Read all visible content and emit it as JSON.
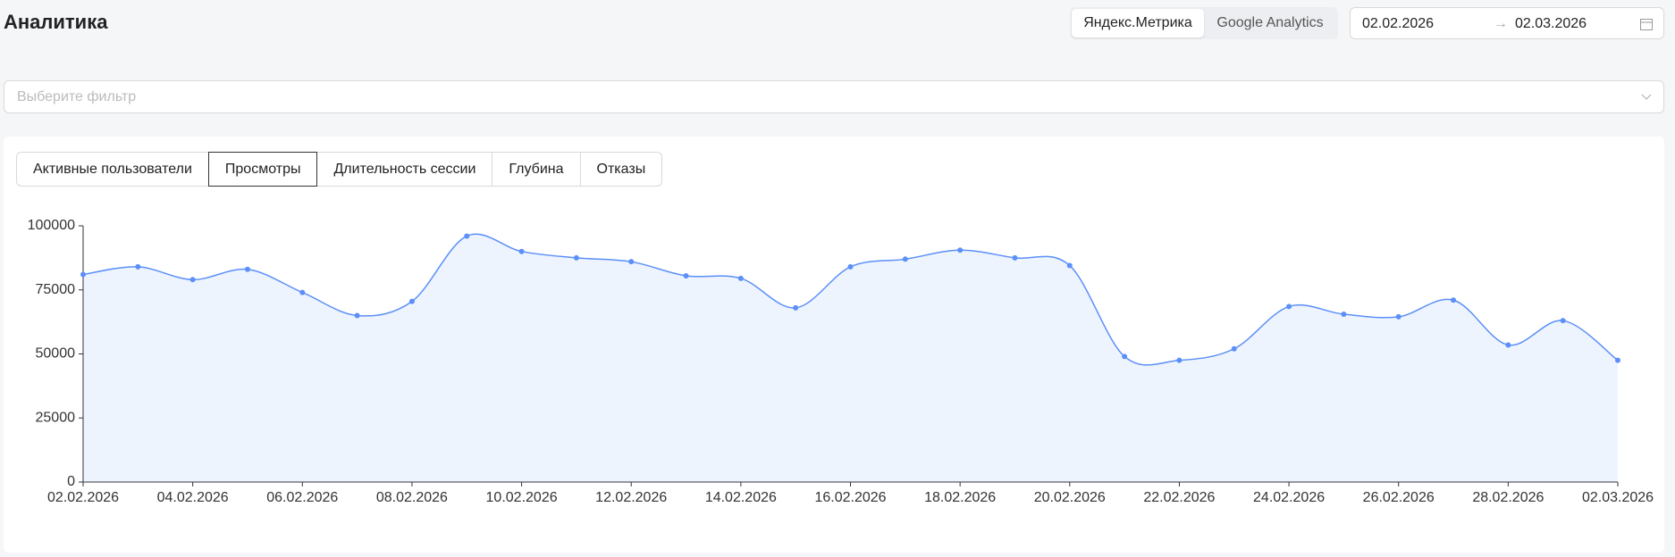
{
  "header": {
    "title": "Аналитика"
  },
  "sources": [
    "Яндекс.Метрика",
    "Google Analytics"
  ],
  "active_source": 0,
  "date_range": {
    "start": "02.02.2026",
    "end": "02.03.2026"
  },
  "filter_placeholder": "Выберите фильтр",
  "tabs": [
    "Активные пользователи",
    "Просмотры",
    "Длительность сессии",
    "Глубина",
    "Отказы"
  ],
  "active_tab": 1,
  "chart_data": {
    "type": "line",
    "categories": [
      "02.02.2026",
      null,
      "04.02.2026",
      null,
      "06.02.2026",
      null,
      "08.02.2026",
      null,
      "10.02.2026",
      null,
      "12.02.2026",
      null,
      "14.02.2026",
      null,
      "16.02.2026",
      null,
      "18.02.2026",
      null,
      "20.02.2026",
      null,
      "22.02.2026",
      null,
      "24.02.2026",
      null,
      "26.02.2026",
      null,
      "28.02.2026",
      null,
      "02.03.2026"
    ],
    "values": [
      81000,
      84000,
      79000,
      83000,
      74000,
      65000,
      70500,
      96000,
      90000,
      87500,
      86000,
      80500,
      79500,
      68000,
      84000,
      87000,
      90500,
      87500,
      84500,
      49000,
      47500,
      52000,
      68500,
      65500,
      64500,
      71000,
      53500,
      63000,
      47500
    ],
    "color": "#5b8ff9",
    "ylim": [
      0,
      100000
    ],
    "yticks": [
      0,
      25000,
      50000,
      75000,
      100000
    ]
  }
}
